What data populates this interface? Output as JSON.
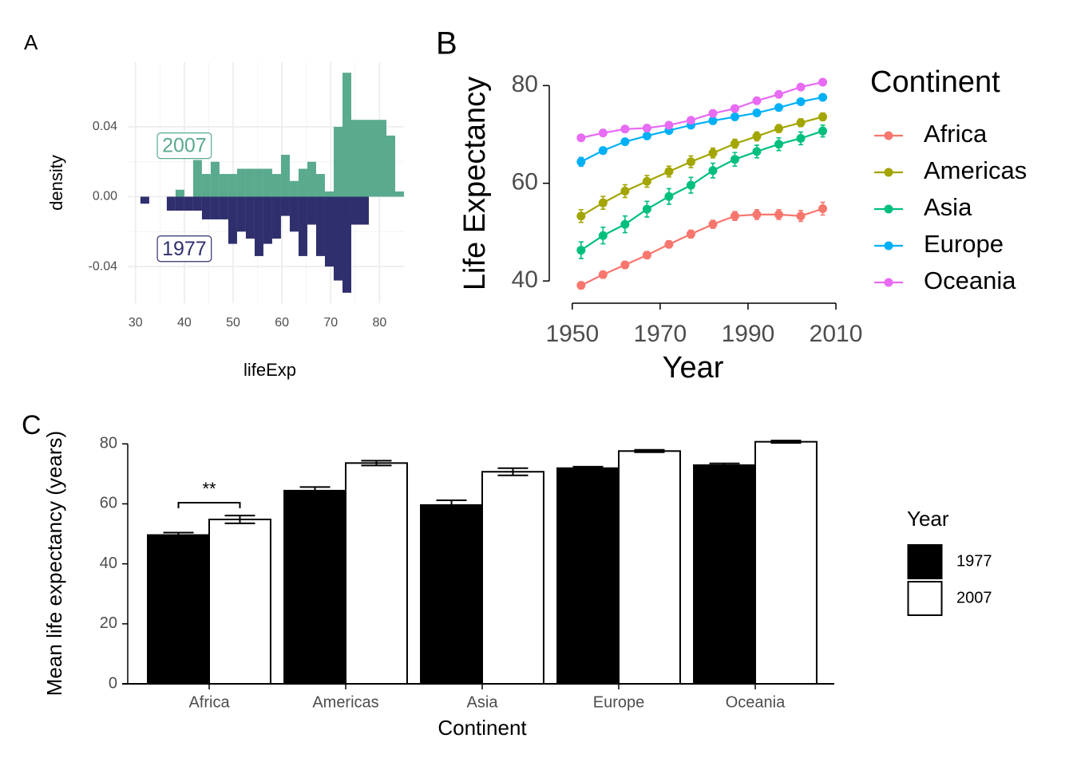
{
  "chart_data": [
    {
      "type": "histogram",
      "panel": "A",
      "xlabel": "lifeExp",
      "ylabel": "density",
      "xlim": [
        28.4,
        85.0
      ],
      "ylim": [
        -0.061,
        0.077
      ],
      "xticks": [
        30,
        40,
        50,
        60,
        70,
        80
      ],
      "yticks": [
        -0.04,
        {
          "value": 0,
          "label": "0.00"
        },
        0.04
      ],
      "grid": true,
      "bins": [
        31,
        32.8,
        34.6,
        36.4,
        38.2,
        40,
        41.8,
        43.6,
        45.4,
        47.2,
        49,
        50.8,
        52.6,
        54.4,
        56.2,
        58,
        59.8,
        61.6,
        63.4,
        65.2,
        67,
        68.8,
        70.6,
        72.4,
        74.2,
        76,
        77.8,
        79.6,
        81.4,
        83.2,
        85
      ],
      "series": [
        {
          "name": "2007",
          "color": "#5aaa8e",
          "values": [
            0,
            0,
            0,
            0,
            0.004,
            0,
            0.021,
            0.013,
            0.02,
            0.013,
            0.013,
            0.016,
            0.016,
            0.016,
            0.016,
            0.013,
            0.024,
            0.009,
            0.016,
            0.02,
            0.013,
            0.003,
            0.04,
            0.071,
            0.044,
            0.044,
            0.044,
            0.044,
            0.035,
            0.003
          ]
        },
        {
          "name": "1977",
          "color": "#2f2f6e",
          "values": [
            -0.004,
            0,
            0,
            -0.008,
            -0.008,
            -0.008,
            -0.008,
            -0.013,
            -0.013,
            -0.013,
            -0.027,
            -0.02,
            -0.024,
            -0.034,
            -0.027,
            -0.024,
            -0.011,
            -0.02,
            -0.034,
            -0.016,
            -0.034,
            -0.04,
            -0.048,
            -0.055,
            -0.016,
            -0.016,
            0,
            0,
            0,
            0
          ]
        }
      ],
      "annotations": [
        {
          "text": "2007",
          "x": 40,
          "y": 0.029,
          "color": "#5aaa8e"
        },
        {
          "text": "1977",
          "x": 40,
          "y": -0.03,
          "color": "#2f2f6e"
        }
      ]
    },
    {
      "type": "line",
      "panel": "B",
      "xlabel": "Year",
      "ylabel": "Life Expectancy",
      "legend_title": "Continent",
      "xlim": [
        1946.4,
        2012.9
      ],
      "ylim": [
        37.9,
        82
      ],
      "xticks": [
        1950,
        1970,
        1990,
        2010
      ],
      "yticks": [
        40,
        60,
        80
      ],
      "x": [
        1952,
        1957,
        1962,
        1967,
        1972,
        1977,
        1982,
        1987,
        1992,
        1997,
        2002,
        2007
      ],
      "series": [
        {
          "name": "Africa",
          "color": "#F8766D",
          "values": [
            39.1,
            41.3,
            43.3,
            45.3,
            47.5,
            49.6,
            51.6,
            53.3,
            53.6,
            53.6,
            53.3,
            54.8
          ],
          "errors": [
            0.7,
            0.7,
            0.7,
            0.7,
            0.7,
            0.8,
            0.8,
            0.9,
            1.0,
            1.0,
            1.1,
            1.3
          ]
        },
        {
          "name": "Americas",
          "color": "#A3A500",
          "values": [
            53.3,
            56.0,
            58.4,
            60.4,
            62.4,
            64.4,
            66.2,
            68.1,
            69.6,
            71.2,
            72.4,
            73.6
          ],
          "errors": [
            1.3,
            1.3,
            1.3,
            1.2,
            1.1,
            1.2,
            1.0,
            0.9,
            0.9,
            0.8,
            0.8,
            0.8
          ]
        },
        {
          "name": "Asia",
          "color": "#00BF7D",
          "values": [
            46.3,
            49.3,
            51.6,
            54.7,
            57.3,
            59.6,
            62.6,
            64.9,
            66.5,
            68.0,
            69.2,
            70.7
          ],
          "errors": [
            1.7,
            1.7,
            1.7,
            1.6,
            1.6,
            1.6,
            1.5,
            1.4,
            1.3,
            1.3,
            1.3,
            1.2
          ]
        },
        {
          "name": "Europe",
          "color": "#00B0F6",
          "values": [
            64.4,
            66.7,
            68.5,
            69.7,
            70.8,
            71.9,
            72.8,
            73.6,
            74.4,
            75.5,
            76.7,
            77.6
          ],
          "errors": [
            0.9,
            0.6,
            0.5,
            0.4,
            0.4,
            0.5,
            0.3,
            0.3,
            0.4,
            0.4,
            0.4,
            0.4
          ]
        },
        {
          "name": "Oceania",
          "color": "#E76BF3",
          "values": [
            69.3,
            70.3,
            71.1,
            71.3,
            71.9,
            72.9,
            74.3,
            75.3,
            76.9,
            78.2,
            79.7,
            80.7
          ],
          "errors": [
            0.3,
            0.3,
            0.1,
            0.2,
            0.2,
            0.6,
            0.4,
            0.6,
            0.3,
            0.3,
            0.3,
            0.4
          ]
        }
      ]
    },
    {
      "type": "bar",
      "panel": "C",
      "xlabel": "Continent",
      "ylabel": "Mean life expectancy (years)",
      "legend_title": "Year",
      "ylim": [
        0,
        83
      ],
      "yticks": [
        0,
        20,
        40,
        60,
        80
      ],
      "categories": [
        "Africa",
        "Americas",
        "Asia",
        "Europe",
        "Oceania"
      ],
      "series": [
        {
          "name": "1977",
          "color": "#000000",
          "values": [
            49.6,
            64.4,
            59.6,
            71.9,
            72.9
          ],
          "errors": [
            0.8,
            1.2,
            1.6,
            0.5,
            0.6
          ]
        },
        {
          "name": "2007",
          "color": "#ffffff",
          "values": [
            54.8,
            73.6,
            70.7,
            77.6,
            80.7
          ],
          "errors": [
            1.3,
            0.8,
            1.2,
            0.4,
            0.4
          ]
        }
      ],
      "annotations": [
        {
          "text": "**",
          "y": 60.4,
          "category": "Africa"
        }
      ]
    }
  ]
}
